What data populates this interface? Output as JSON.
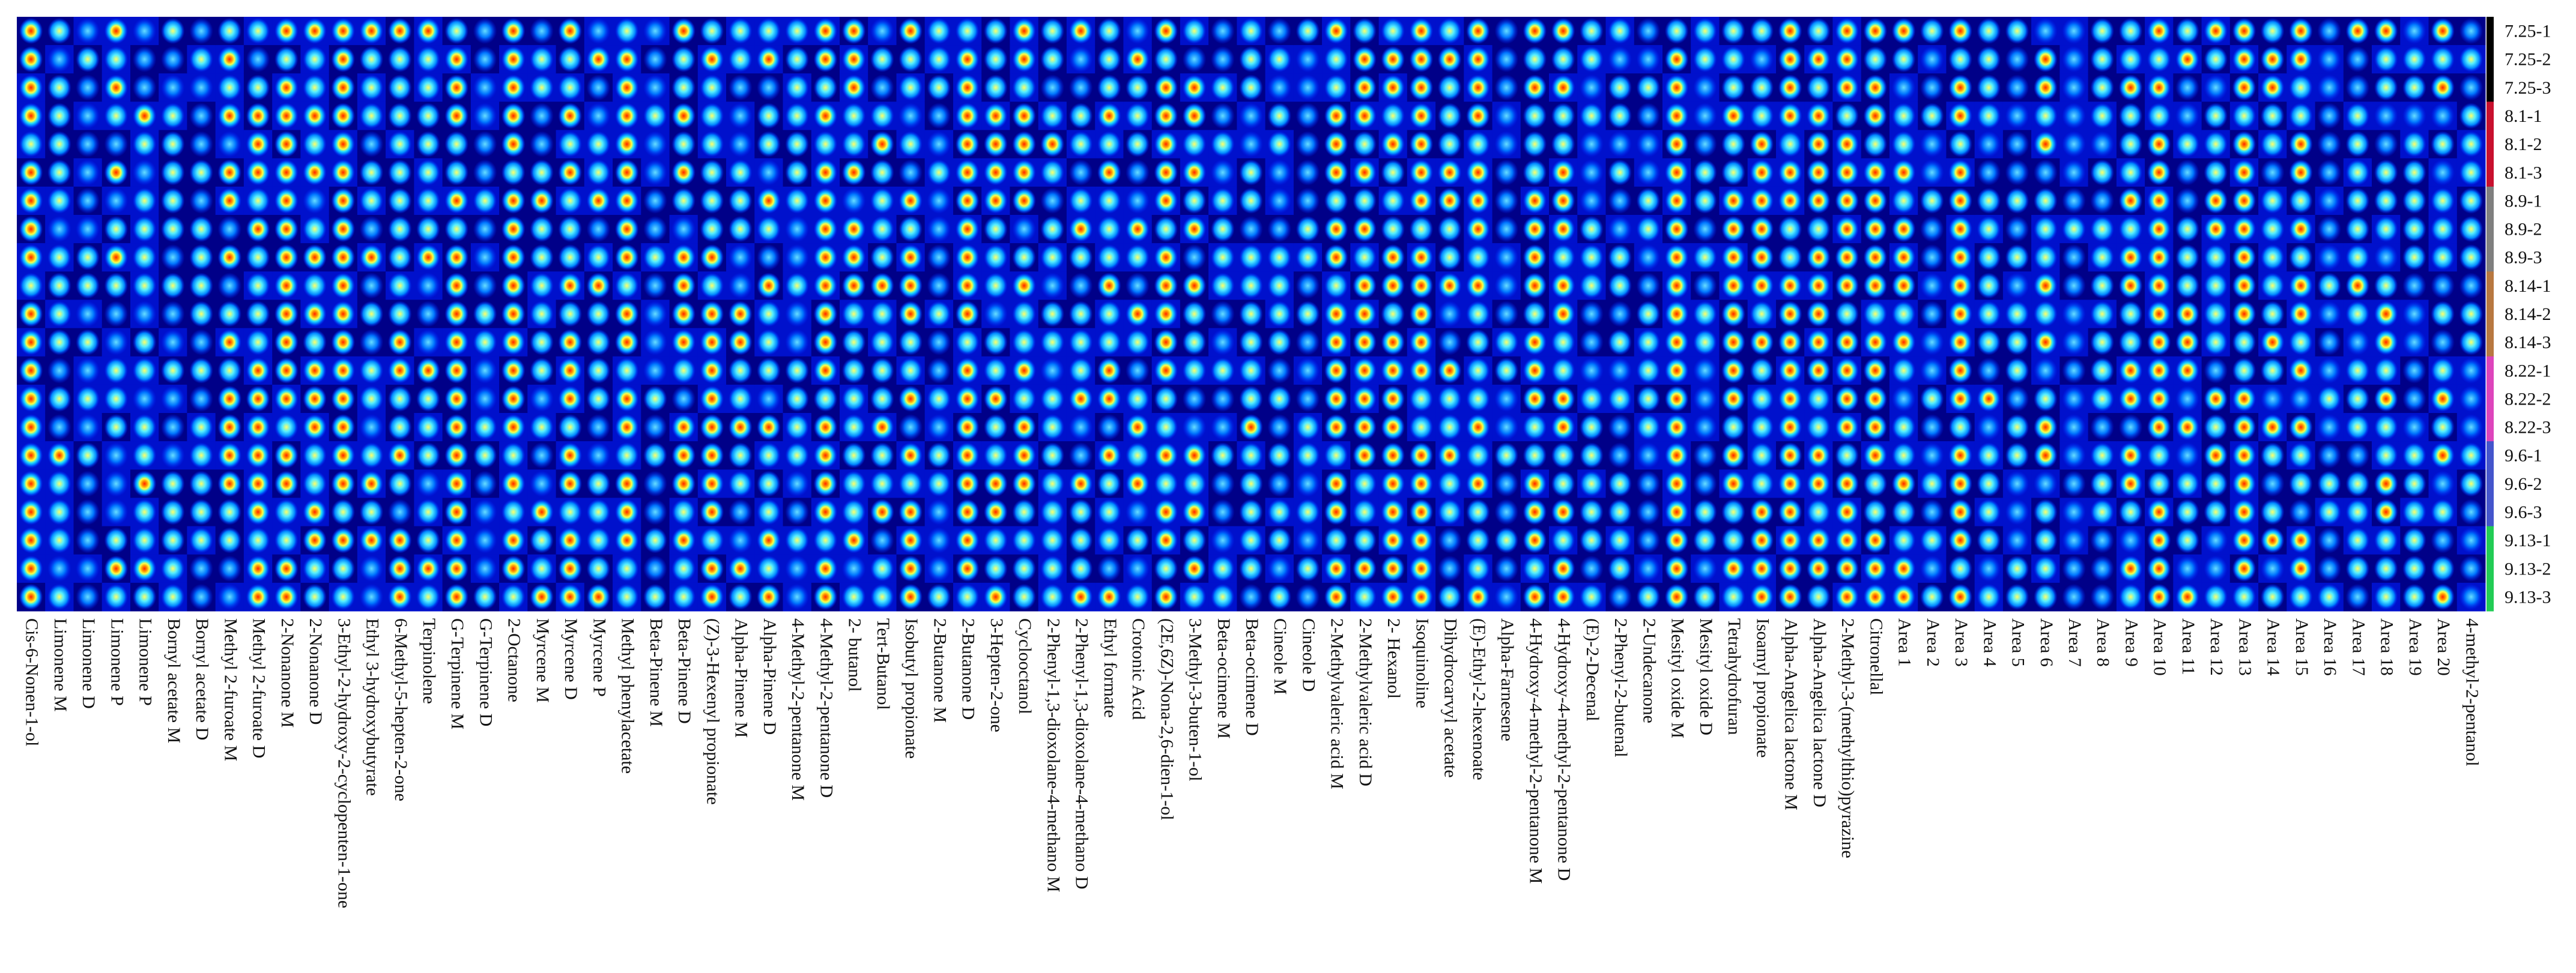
{
  "chart_data": {
    "type": "heatmap",
    "title": "",
    "xlabel": "",
    "ylabel": "",
    "colormap": [
      "#000000",
      "#00007a",
      "#0022ff",
      "#0099ff",
      "#22ddff",
      "#88ffee",
      "#ffff44",
      "#ff9900",
      "#ff2200",
      "#aa0000"
    ],
    "rows": [
      "7.25-1",
      "7.25-2",
      "7.25-3",
      "8.1-1",
      "8.1-2",
      "8.1-3",
      "8.9-1",
      "8.9-2",
      "8.9-3",
      "8.14-1",
      "8.14-2",
      "8.14-3",
      "8.22-1",
      "8.22-2",
      "8.22-3",
      "9.6-1",
      "9.6-2",
      "9.6-3",
      "9.13-1",
      "9.13-2",
      "9.13-3"
    ],
    "row_group_colors": [
      "#000000",
      "#000000",
      "#000000",
      "#c8102e",
      "#c8102e",
      "#c8102e",
      "#7f7f7f",
      "#7f7f7f",
      "#7f7f7f",
      "#b87840",
      "#b87840",
      "#b87840",
      "#dd44bb",
      "#dd44bb",
      "#dd44bb",
      "#4455cc",
      "#4455cc",
      "#4455cc",
      "#22cc55",
      "#22cc55",
      "#22cc55"
    ],
    "columns": [
      "Cis-6-Nonen-1-ol",
      "Limonene M",
      "Limonene D",
      "Limonene P",
      "Limonene P",
      "Bornyl acetate M",
      "Bornyl acetate D",
      "Methyl 2-furoate M",
      "Methyl 2-furoate D",
      "2-Nonanone M",
      "2-Nonanone D",
      "3-Ethyl-2-hydroxy-2-cyclopenten-1-one",
      "Ethyl 3-hydroxybutyrate",
      "6-Methyl-5-hepten-2-one",
      "Terpinolene",
      "G-Terpinene M",
      "G-Terpinene D",
      "2-Octanone",
      "Myrcene M",
      "Myrcene D",
      "Myrcene P",
      "Methyl phenylacetate",
      "Beta-Pinene M",
      "Beta-Pinene D",
      "(Z)-3-Hexenyl propionate",
      "Alpha-Pinene M",
      "Alpha-Pinene D",
      "4-Methyl-2-pentanone M",
      "4-Methyl-2-pentanone D",
      "2- butanol",
      "Tert-Butanol",
      "Isobutyl propionate",
      "2-Butanone M",
      "2-Butanone D",
      "3-Hepten-2-one",
      "Cyclooctanol",
      "2-Phenyl-1,3-dioxolane-4-methano M",
      "2-Phenyl-1,3-dioxolane-4-methano D",
      "Ethyl formate",
      "Crotonic Acid",
      "(2E,6Z)-Nona-2,6-dien-1-ol",
      "3-Methyl-3-buten-1-ol",
      "Beta-ocimene M",
      "Beta-ocimene D",
      "Cineole M",
      "Cineole D",
      "2-Methylvaleric acid M",
      "2-Methylvaleric acid D",
      "2- Hexanol",
      "Isoquinoline",
      "Dihydrocarvyl acetate",
      "(E)-Ethyl-2-hexenoate",
      "Alpha-Farnesene",
      "4-Hydroxy-4-methyl-2-pentanone M",
      "4-Hydroxy-4-methyl-2-pentanone D",
      "(E)-2-Decenal",
      "2-Phenyl-2-butenal",
      "2-Undecanone",
      "Mesityl oxide M",
      "Mesityl oxide D",
      "Tetrahydrofuran",
      "Isoamyl propionate",
      "Alpha-Angelica lactone M",
      "Alpha-Angelica lactone D",
      "2-Methyl-3-(methylthio)pyrazine",
      "Citronellal",
      "Area 1",
      "Area 2",
      "Area 3",
      "Area 4",
      "Area 5",
      "Area 6",
      "Area 7",
      "Area 8",
      "Area 9",
      "Area 10",
      "Area 11",
      "Area 12",
      "Area 13",
      "Area 14",
      "Area 15",
      "Area 16",
      "Area 17",
      "Area 18",
      "Area 19",
      "Area 20",
      "4-methyl-2-pentanol"
    ],
    "values": "column-wise spot intensities per sample row (normalized 0-1, see plotting script)"
  }
}
